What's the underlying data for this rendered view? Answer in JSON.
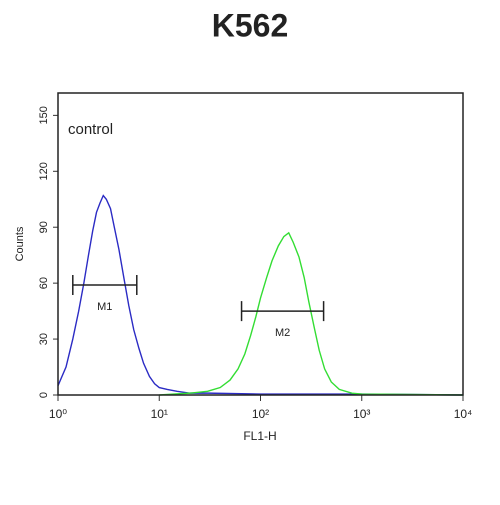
{
  "chart_data": {
    "type": "histogram-line",
    "title": "K562",
    "xlabel": "FL1-H",
    "ylabel": "Counts",
    "annotation": "control",
    "log_x": true,
    "xlim": [
      1,
      10000
    ],
    "ylim": [
      0,
      162
    ],
    "xticks": [
      {
        "value": 1,
        "label": "10⁰"
      },
      {
        "value": 10,
        "label": "10¹"
      },
      {
        "value": 100,
        "label": "10²"
      },
      {
        "value": 1000,
        "label": "10³"
      },
      {
        "value": 10000,
        "label": "10⁴"
      }
    ],
    "yticks": [
      0,
      30,
      60,
      90,
      120,
      150
    ],
    "series": [
      {
        "color": "#2b2bc4",
        "x": [
          1,
          1.2,
          1.4,
          1.6,
          1.8,
          2.0,
          2.2,
          2.4,
          2.6,
          2.8,
          3.0,
          3.3,
          3.6,
          4.0,
          4.5,
          5.0,
          5.6,
          6.3,
          7,
          8,
          9,
          10,
          12,
          15,
          20,
          30,
          100,
          1000,
          10000
        ],
        "values": [
          5,
          15,
          30,
          45,
          60,
          75,
          88,
          98,
          103,
          107,
          105,
          100,
          90,
          78,
          62,
          48,
          35,
          25,
          17,
          10,
          6,
          4,
          3,
          2,
          1,
          1,
          0.5,
          0.5,
          0
        ]
      },
      {
        "color": "#33dd33",
        "x": [
          10,
          20,
          30,
          40,
          50,
          60,
          70,
          80,
          90,
          100,
          115,
          130,
          150,
          170,
          190,
          210,
          240,
          270,
          300,
          340,
          380,
          430,
          500,
          600,
          800,
          1000,
          10000
        ],
        "values": [
          0,
          1,
          2,
          4,
          8,
          14,
          22,
          32,
          42,
          52,
          63,
          72,
          80,
          85,
          87,
          82,
          74,
          63,
          50,
          36,
          24,
          14,
          7,
          3,
          1,
          0.5,
          0
        ]
      }
    ],
    "gates": [
      {
        "label": "M1",
        "x": [
          1.4,
          6
        ],
        "y": 59
      },
      {
        "label": "M2",
        "x": [
          65,
          420
        ],
        "y": 45
      }
    ]
  }
}
